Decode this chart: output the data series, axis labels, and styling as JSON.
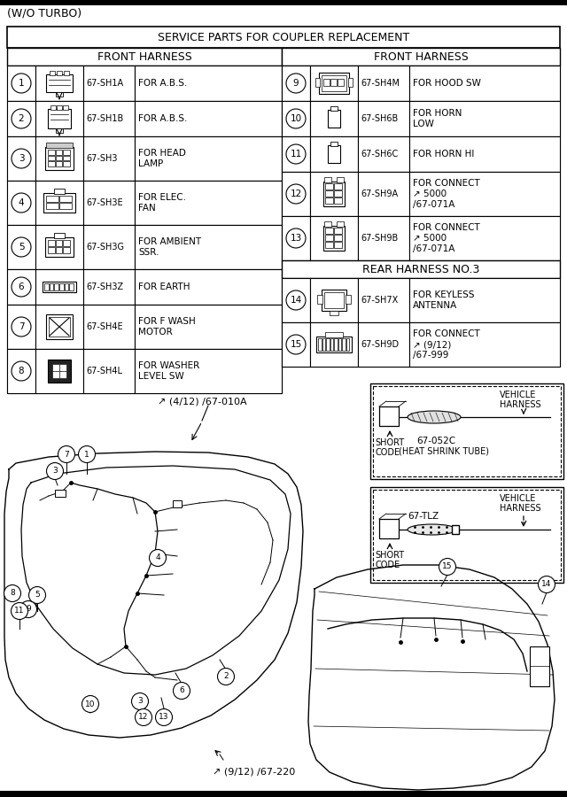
{
  "table_title": "SERVICE PARTS FOR COUPLER REPLACEMENT",
  "left_header": "FRONT HARNESS",
  "right_header": "FRONT HARNESS",
  "rear_header": "REAR HARNESS NO.3",
  "title_label": "(W/O TURBO)",
  "left_rows": [
    {
      "num": "1",
      "code": "67-SH1A",
      "desc": "FOR A.B.S."
    },
    {
      "num": "2",
      "code": "67-SH1B",
      "desc": "FOR A.B.S."
    },
    {
      "num": "3",
      "code": "67-SH3",
      "desc": "FOR HEAD\nLAMP"
    },
    {
      "num": "4",
      "code": "67-SH3E",
      "desc": "FOR ELEC.\nFAN"
    },
    {
      "num": "5",
      "code": "67-SH3G",
      "desc": "FOR AMBIENT\nSSR."
    },
    {
      "num": "6",
      "code": "67-SH3Z",
      "desc": "FOR EARTH"
    },
    {
      "num": "7",
      "code": "67-SH4E",
      "desc": "FOR F WASH\nMOTOR"
    },
    {
      "num": "8",
      "code": "67-SH4L",
      "desc": "FOR WASHER\nLEVEL SW"
    }
  ],
  "right_front_rows": [
    {
      "num": "9",
      "code": "67-SH4M",
      "desc": "FOR HOOD SW"
    },
    {
      "num": "10",
      "code": "67-SH6B",
      "desc": "FOR HORN\nLOW"
    },
    {
      "num": "11",
      "code": "67-SH6C",
      "desc": "FOR HORN HI"
    },
    {
      "num": "12",
      "code": "67-SH9A",
      "desc": "FOR CONNECT\n↗ 5000\n/67-071A"
    },
    {
      "num": "13",
      "code": "67-SH9B",
      "desc": "FOR CONNECT\n↗ 5000\n/67-071A"
    }
  ],
  "right_rear_rows": [
    {
      "num": "14",
      "code": "67-SH7X",
      "desc": "FOR KEYLESS\nANTENNA"
    },
    {
      "num": "15",
      "code": "67-SH9D",
      "desc": "FOR CONNECT\n↗ (9/12)\n/67-999"
    }
  ],
  "box1_label1": "67-052C",
  "box1_label2": "(HEAT SHRINK TUBE)",
  "box1_short": "SHORT\nCODE",
  "box1_vehicle": "VEHICLE\nHARNESS",
  "box2_label": "67-TLZ",
  "box2_short": "SHORT\nCODE",
  "box2_vehicle": "VEHICLE\nHARNESS",
  "ref1": "↗ (4/12) /67-010A",
  "ref2": "↗ (9/12) /67-220"
}
